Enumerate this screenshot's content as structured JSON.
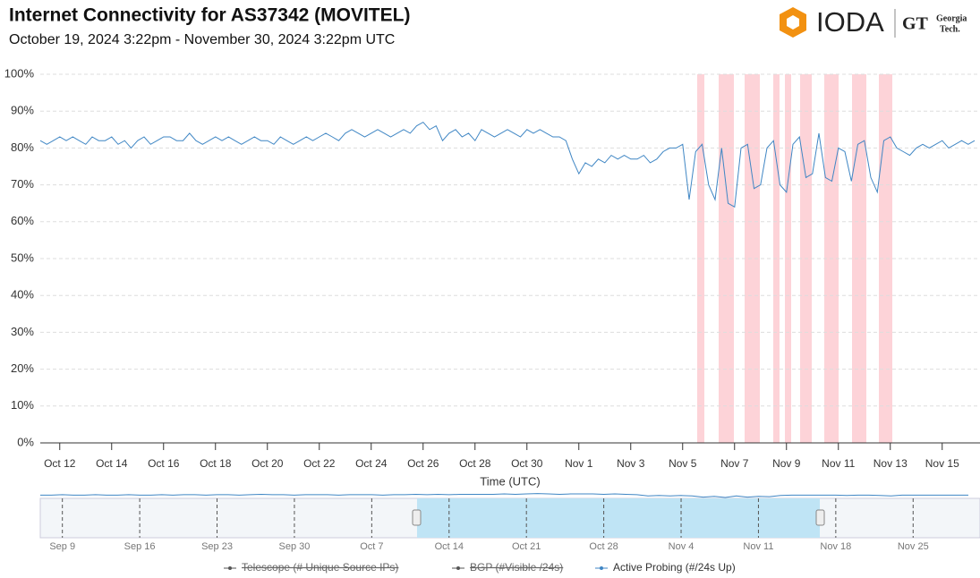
{
  "chart_data": [
    {
      "type": "line",
      "title": "Internet Connectivity for  AS37342 (MOVITEL)",
      "subtitle": "October 19, 2024 3:22pm - November 30, 2024 3:22pm UTC",
      "x_label": "Time (UTC)",
      "ylim": [
        0,
        100
      ],
      "yticks": [
        {
          "value": 0,
          "label": "0%"
        },
        {
          "value": 10,
          "label": "10%"
        },
        {
          "value": 20,
          "label": "20%"
        },
        {
          "value": 30,
          "label": "30%"
        },
        {
          "value": 40,
          "label": "40%"
        },
        {
          "value": 50,
          "label": "50%"
        },
        {
          "value": 60,
          "label": "60%"
        },
        {
          "value": 70,
          "label": "70%"
        },
        {
          "value": 80,
          "label": "80%"
        },
        {
          "value": 90,
          "label": "90%"
        },
        {
          "value": 100,
          "label": "100%"
        }
      ],
      "grid": true,
      "categories": [
        null,
        null,
        null,
        "Oct 12",
        null,
        null,
        null,
        null,
        null,
        null,
        null,
        "Oct 14",
        null,
        null,
        null,
        null,
        null,
        null,
        null,
        "Oct 16",
        null,
        null,
        null,
        null,
        null,
        null,
        null,
        "Oct 18",
        null,
        null,
        null,
        null,
        null,
        null,
        null,
        "Oct 20",
        null,
        null,
        null,
        null,
        null,
        null,
        null,
        "Oct 22",
        null,
        null,
        null,
        null,
        null,
        null,
        null,
        "Oct 24",
        null,
        null,
        null,
        null,
        null,
        null,
        null,
        "Oct 26",
        null,
        null,
        null,
        null,
        null,
        null,
        null,
        "Oct 28",
        null,
        null,
        null,
        null,
        null,
        null,
        null,
        "Oct 30",
        null,
        null,
        null,
        null,
        null,
        null,
        null,
        "Nov 1",
        null,
        null,
        null,
        null,
        null,
        null,
        null,
        "Nov 3",
        null,
        null,
        null,
        null,
        null,
        null,
        null,
        "Nov 5",
        null,
        null,
        null,
        null,
        null,
        null,
        null,
        "Nov 7",
        null,
        null,
        null,
        null,
        null,
        null,
        null,
        "Nov 9",
        null,
        null,
        null,
        null,
        null,
        null,
        null,
        "Nov 11",
        null,
        null,
        null,
        null,
        null,
        null,
        null,
        "Nov 13",
        null,
        null,
        null,
        null,
        null,
        null,
        null,
        "Nov 15",
        null,
        null,
        null,
        null,
        null
      ],
      "series": [
        {
          "name": "Telescope (# Unique Source IPs)",
          "color": "#555555",
          "visible": false
        },
        {
          "name": "BGP (#Visible /24s)",
          "color": "#555555",
          "visible": false
        },
        {
          "name": "Active Probing (#/24s Up)",
          "color": "#3f86c4",
          "visible": true,
          "values": [
            82,
            81,
            82,
            83,
            82,
            83,
            82,
            81,
            83,
            82,
            82,
            83,
            81,
            82,
            80,
            82,
            83,
            81,
            82,
            83,
            83,
            82,
            82,
            84,
            82,
            81,
            82,
            83,
            82,
            83,
            82,
            81,
            82,
            83,
            82,
            82,
            81,
            83,
            82,
            81,
            82,
            83,
            82,
            83,
            84,
            83,
            82,
            84,
            85,
            84,
            83,
            84,
            85,
            84,
            83,
            84,
            85,
            84,
            86,
            87,
            85,
            86,
            82,
            84,
            85,
            83,
            84,
            82,
            85,
            84,
            83,
            84,
            85,
            84,
            83,
            85,
            84,
            85,
            84,
            83,
            83,
            82,
            77,
            73,
            76,
            75,
            77,
            76,
            78,
            77,
            78,
            77,
            77,
            78,
            76,
            77,
            79,
            80,
            80,
            81,
            66,
            79,
            81,
            70,
            66,
            80,
            65,
            64,
            80,
            81,
            69,
            70,
            80,
            82,
            70,
            68,
            81,
            83,
            72,
            73,
            84,
            72,
            71,
            80,
            79,
            71,
            81,
            82,
            72,
            68,
            82,
            83,
            80,
            79,
            78,
            80,
            81,
            80,
            81,
            82,
            80,
            81,
            82,
            81,
            82
          ]
        }
      ]
    },
    {
      "type": "navigator",
      "categories": [
        null,
        null,
        "Sep 9",
        null,
        null,
        null,
        null,
        null,
        null,
        "Sep 16",
        null,
        null,
        null,
        null,
        null,
        null,
        "Sep 23",
        null,
        null,
        null,
        null,
        null,
        null,
        "Sep 30",
        null,
        null,
        null,
        null,
        null,
        null,
        "Oct 7",
        null,
        null,
        null,
        null,
        null,
        null,
        "Oct 14",
        null,
        null,
        null,
        null,
        null,
        null,
        "Oct 21",
        null,
        null,
        null,
        null,
        null,
        null,
        "Oct 28",
        null,
        null,
        null,
        null,
        null,
        null,
        "Nov 4",
        null,
        null,
        null,
        null,
        null,
        null,
        "Nov 11",
        null,
        null,
        null,
        null,
        null,
        null,
        "Nov 18",
        null,
        null,
        null,
        null,
        null,
        null,
        "Nov 25",
        null,
        null,
        null,
        null,
        null
      ],
      "color": "#3f86c4",
      "values": [
        81,
        81,
        82,
        81,
        81,
        82,
        81,
        81,
        82,
        81,
        81,
        82,
        81,
        82,
        82,
        81,
        82,
        82,
        81,
        82,
        83,
        82,
        82,
        81,
        82,
        82,
        82,
        81,
        82,
        82,
        82,
        81,
        82,
        82,
        83,
        82,
        83,
        82,
        83,
        83,
        83,
        83,
        84,
        83,
        84,
        85,
        84,
        83,
        84,
        84,
        84,
        83,
        84,
        83,
        82,
        79,
        80,
        79,
        80,
        79,
        76,
        78,
        75,
        79,
        76,
        78,
        77,
        80,
        81,
        81,
        81,
        81,
        81,
        80,
        81,
        81,
        80,
        79,
        81,
        81,
        81,
        81,
        81,
        81,
        81
      ]
    }
  ],
  "logo": {
    "name": "IODA",
    "partner": [
      "Georgia",
      "Tech."
    ]
  }
}
